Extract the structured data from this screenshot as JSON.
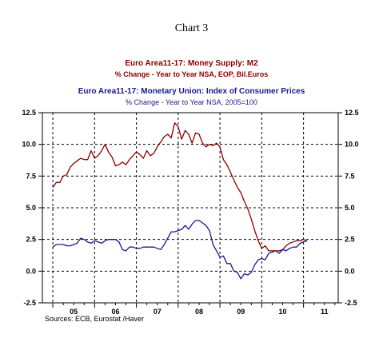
{
  "chart_data": {
    "type": "line",
    "title": "Chart 3",
    "series": [
      {
        "name": "Euro Area11-17: Money Supply: M2",
        "subtitle": "% Change - Year to Year     NSA, EOP, Bil.Euros",
        "color": "#8b0000",
        "x": [
          2005.0,
          2005.083,
          2005.167,
          2005.25,
          2005.333,
          2005.417,
          2005.5,
          2005.583,
          2005.667,
          2005.75,
          2005.833,
          2005.917,
          2006.0,
          2006.083,
          2006.167,
          2006.25,
          2006.333,
          2006.417,
          2006.5,
          2006.583,
          2006.667,
          2006.75,
          2006.833,
          2006.917,
          2007.0,
          2007.083,
          2007.167,
          2007.25,
          2007.333,
          2007.417,
          2007.5,
          2007.583,
          2007.667,
          2007.75,
          2007.833,
          2007.917,
          2008.0,
          2008.083,
          2008.167,
          2008.25,
          2008.333,
          2008.417,
          2008.5,
          2008.583,
          2008.667,
          2008.75,
          2008.833,
          2008.917,
          2009.0,
          2009.083,
          2009.167,
          2009.25,
          2009.333,
          2009.417,
          2009.5,
          2009.583,
          2009.667,
          2009.75,
          2009.833,
          2009.917,
          2010.0,
          2010.083,
          2010.167,
          2010.25,
          2010.333,
          2010.417,
          2010.5,
          2010.583,
          2010.667,
          2010.75,
          2010.833,
          2010.917,
          2011.0,
          2011.083
        ],
        "y": [
          6.6,
          7.0,
          7.0,
          7.5,
          7.6,
          8.2,
          8.5,
          8.7,
          8.9,
          8.8,
          8.8,
          9.5,
          8.9,
          9.1,
          9.5,
          10.0,
          9.4,
          9.0,
          8.3,
          8.4,
          8.6,
          8.4,
          8.8,
          9.1,
          9.4,
          9.2,
          8.9,
          9.5,
          9.1,
          9.3,
          9.8,
          10.2,
          10.6,
          10.8,
          10.5,
          11.7,
          11.4,
          10.4,
          11.1,
          10.8,
          10.1,
          10.9,
          10.8,
          10.1,
          9.8,
          10.0,
          9.9,
          10.1,
          9.8,
          8.8,
          8.4,
          7.8,
          7.2,
          6.6,
          6.2,
          5.5,
          4.9,
          4.1,
          3.2,
          2.4,
          1.8,
          2.0,
          1.6,
          1.6,
          1.6,
          1.6,
          1.7,
          2.0,
          2.2,
          2.3,
          2.4,
          2.4,
          2.5,
          2.4
        ]
      },
      {
        "name": "Euro Area11-17: Monetary Union: Index of Consumer Prices",
        "subtitle": "% Change - Year to Year     NSA, 2005=100",
        "color": "#1a1a8c",
        "x": [
          2005.0,
          2005.083,
          2005.167,
          2005.25,
          2005.333,
          2005.417,
          2005.5,
          2005.583,
          2005.667,
          2005.75,
          2005.833,
          2005.917,
          2006.0,
          2006.083,
          2006.167,
          2006.25,
          2006.333,
          2006.417,
          2006.5,
          2006.583,
          2006.667,
          2006.75,
          2006.833,
          2006.917,
          2007.0,
          2007.083,
          2007.167,
          2007.25,
          2007.333,
          2007.417,
          2007.5,
          2007.583,
          2007.667,
          2007.75,
          2007.833,
          2007.917,
          2008.0,
          2008.083,
          2008.167,
          2008.25,
          2008.333,
          2008.417,
          2008.5,
          2008.583,
          2008.667,
          2008.75,
          2008.833,
          2008.917,
          2009.0,
          2009.083,
          2009.167,
          2009.25,
          2009.333,
          2009.417,
          2009.5,
          2009.583,
          2009.667,
          2009.75,
          2009.833,
          2009.917,
          2010.0,
          2010.083,
          2010.167,
          2010.25,
          2010.333,
          2010.417,
          2010.5,
          2010.583,
          2010.667,
          2010.75,
          2010.833,
          2010.917,
          2011.0,
          2011.083
        ],
        "y": [
          1.9,
          2.1,
          2.1,
          2.1,
          2.0,
          2.0,
          2.1,
          2.2,
          2.6,
          2.5,
          2.3,
          2.2,
          2.4,
          2.3,
          2.2,
          2.4,
          2.5,
          2.5,
          2.5,
          2.3,
          1.7,
          1.6,
          1.9,
          1.9,
          1.8,
          1.8,
          1.9,
          1.9,
          1.9,
          1.9,
          1.8,
          1.7,
          2.1,
          2.6,
          3.1,
          3.1,
          3.2,
          3.3,
          3.6,
          3.3,
          3.7,
          4.0,
          4.0,
          3.8,
          3.6,
          3.2,
          2.1,
          1.6,
          1.1,
          1.2,
          0.6,
          0.6,
          0.0,
          -0.1,
          -0.6,
          -0.2,
          -0.3,
          -0.1,
          0.5,
          0.9,
          1.0,
          0.9,
          1.4,
          1.5,
          1.6,
          1.4,
          1.7,
          1.6,
          1.8,
          1.9,
          1.9,
          2.2,
          2.3,
          2.4
        ]
      }
    ],
    "xlim": [
      2004.75,
      2011.83
    ],
    "ylim": [
      -2.5,
      12.5
    ],
    "yticks": [
      12.5,
      10.0,
      7.5,
      5.0,
      2.5,
      0.0,
      -2.5
    ],
    "ytick_labels": [
      "12.5",
      "10.0",
      "7.5",
      "5.0",
      "2.5",
      "0.0",
      "-2.5"
    ],
    "xtick_labels": [
      "05",
      "06",
      "07",
      "08",
      "09",
      "10",
      "11"
    ],
    "grid": "dashed at year boundaries and y ticks",
    "source": "Sources:  ECB, Eurostat /Haver"
  }
}
